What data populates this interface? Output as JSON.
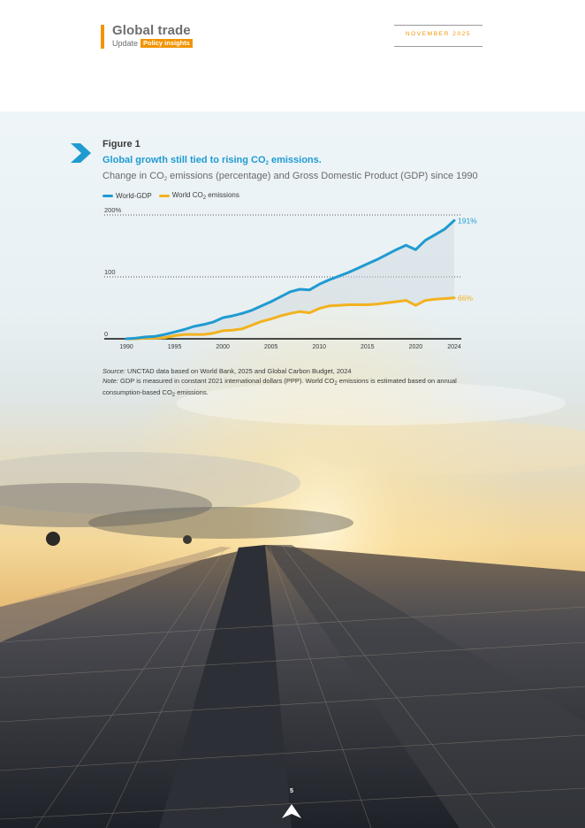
{
  "header": {
    "title": "Global trade",
    "subtitle": "Update",
    "badge": "Policy insights",
    "date": "NOVEMBER 2025"
  },
  "figure": {
    "label": "Figure 1",
    "title_before": "Global growth still tied to rising CO",
    "title_sub": "2",
    "title_after": " emissions.",
    "subtitle_before": "Change in CO",
    "subtitle_sub": "2",
    "subtitle_after": " emissions (percentage) and Gross Domestic Product (GDP) since 1990",
    "legend": [
      {
        "label": "World-GDP",
        "color": "#1f9bd1"
      },
      {
        "label_before": "World CO",
        "label_sub": "2",
        "label_after": " emissions",
        "color": "#f2b21f"
      }
    ],
    "source_label": "Source:",
    "source_text": " UNCTAD data based on World Bank, 2025 and Global Carbon Budget, 2024",
    "note_label": "Note:",
    "note_before": " GDP is measured in constant 2021 international dollars (PPP). World CO",
    "note_sub": "2",
    "note_middle": " emissions is estimated based on annual consumption-based CO",
    "note_sub2": "2",
    "note_after": " emissions."
  },
  "chart_data": {
    "type": "line",
    "title": "Global growth still tied to rising CO2 emissions.",
    "subtitle": "Change in CO2 emissions (percentage) and Gross Domestic Product (GDP) since 1990",
    "xlabel": "",
    "ylabel": "",
    "ylim": [
      0,
      200
    ],
    "y_ticks": [
      "0",
      "100",
      "200%"
    ],
    "x_ticks": [
      "1990",
      "1995",
      "2000",
      "2005",
      "2010",
      "2015",
      "2020",
      "2024"
    ],
    "x": [
      1990,
      1991,
      1992,
      1993,
      1994,
      1995,
      1996,
      1997,
      1998,
      1999,
      2000,
      2001,
      2002,
      2003,
      2004,
      2005,
      2006,
      2007,
      2008,
      2009,
      2010,
      2011,
      2012,
      2013,
      2014,
      2015,
      2016,
      2017,
      2018,
      2019,
      2020,
      2021,
      2022,
      2023,
      2024
    ],
    "series": [
      {
        "name": "World-GDP",
        "color": "#1f9bd1",
        "end_label": "191%",
        "values": [
          0,
          1,
          3,
          4,
          7,
          11,
          15,
          20,
          23,
          27,
          34,
          37,
          41,
          46,
          53,
          60,
          68,
          76,
          80,
          79,
          88,
          95,
          101,
          107,
          114,
          121,
          128,
          136,
          144,
          151,
          144,
          159,
          168,
          177,
          191
        ]
      },
      {
        "name": "World CO2 emissions",
        "color": "#f2b21f",
        "end_label": "66%",
        "values": [
          0,
          0,
          1,
          1,
          2,
          5,
          7,
          7,
          7,
          9,
          13,
          14,
          16,
          22,
          28,
          32,
          37,
          41,
          44,
          42,
          49,
          53,
          54,
          55,
          55,
          55,
          56,
          58,
          60,
          62,
          54,
          62,
          64,
          65,
          66
        ]
      }
    ],
    "grid": "dotted at 100 and 200",
    "legend": "top-left"
  },
  "page": {
    "number": "5"
  }
}
